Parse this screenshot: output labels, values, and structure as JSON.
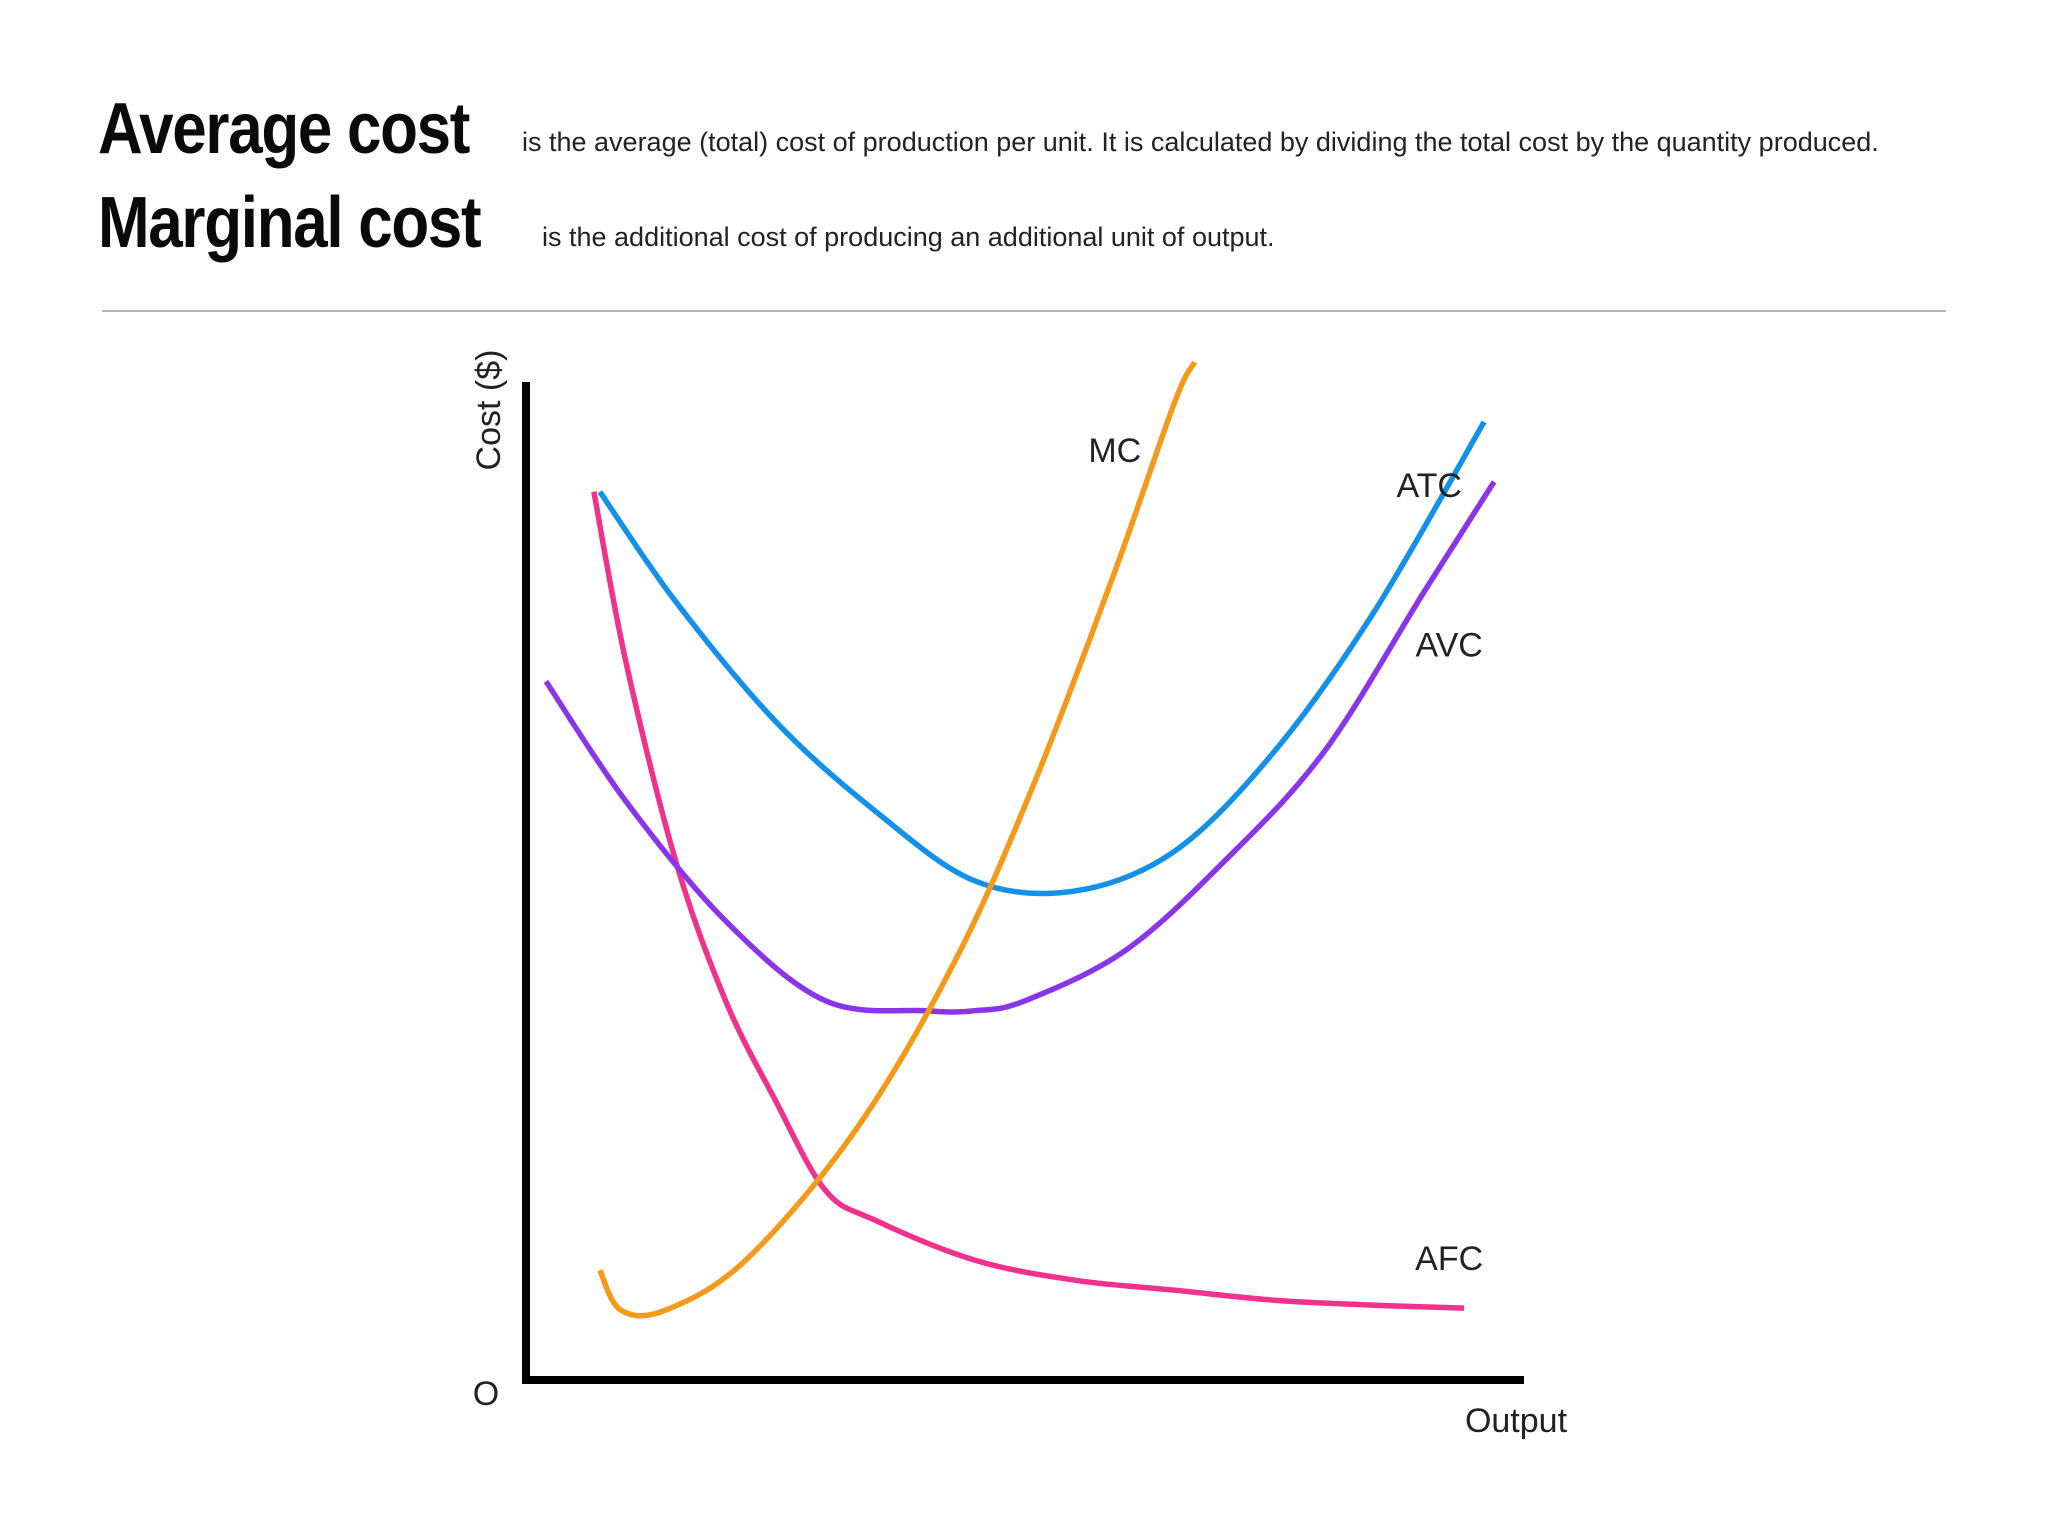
{
  "header": {
    "average_cost_term": "Average cost",
    "average_cost_desc": "is the average (total) cost of production per unit. It is calculated by dividing the total cost by the quantity produced.",
    "marginal_cost_term": "Marginal cost",
    "marginal_cost_desc": "is the additional cost of producing an additional unit of output."
  },
  "chart_data": {
    "type": "line",
    "title": "",
    "xlabel": "Output",
    "ylabel": "Cost ($)",
    "origin_label": "O",
    "grid": false,
    "legend": "none (curves labelled directly)",
    "xlim": [
      0,
      10
    ],
    "ylim": [
      0,
      10
    ],
    "series": [
      {
        "name": "MC",
        "color": "#f39a1b",
        "x": [
          0.74,
          0.95,
          1.4,
          2.2,
          3.3,
          4.3,
          5.1,
          5.9,
          6.5,
          6.7
        ],
        "y": [
          1.1,
          0.7,
          0.7,
          1.2,
          2.5,
          4.2,
          6.0,
          8.1,
          9.8,
          10.2
        ]
      },
      {
        "name": "ATC",
        "color": "#1391e8",
        "x": [
          0.74,
          1.5,
          2.5,
          3.5,
          4.5,
          5.5,
          6.5,
          7.5,
          8.5,
          9.6
        ],
        "y": [
          8.9,
          7.8,
          6.6,
          5.7,
          5.0,
          4.9,
          5.3,
          6.3,
          7.7,
          9.6
        ]
      },
      {
        "name": "AVC",
        "color": "#8a35ea",
        "x": [
          0.2,
          1.0,
          2.0,
          3.0,
          4.0,
          4.5,
          5.0,
          6.0,
          7.0,
          8.0,
          9.0,
          9.7
        ],
        "y": [
          7.0,
          5.8,
          4.6,
          3.8,
          3.7,
          3.7,
          3.8,
          4.3,
          5.2,
          6.3,
          7.9,
          9.0
        ]
      },
      {
        "name": "AFC",
        "color": "#f0328d",
        "x": [
          0.68,
          1.0,
          1.5,
          2.0,
          2.5,
          3.0,
          3.5,
          4.5,
          5.5,
          6.5,
          7.5,
          8.5,
          9.4
        ],
        "y": [
          8.9,
          7.2,
          5.2,
          3.8,
          2.8,
          1.9,
          1.6,
          1.2,
          1.0,
          0.9,
          0.8,
          0.75,
          0.72
        ]
      }
    ],
    "curve_labels": [
      {
        "name": "MC",
        "x": 5.9,
        "y": 9.2
      },
      {
        "name": "ATC",
        "x": 9.05,
        "y": 8.85
      },
      {
        "name": "AVC",
        "x": 9.25,
        "y": 7.25
      },
      {
        "name": "AFC",
        "x": 9.25,
        "y": 1.1
      }
    ]
  }
}
